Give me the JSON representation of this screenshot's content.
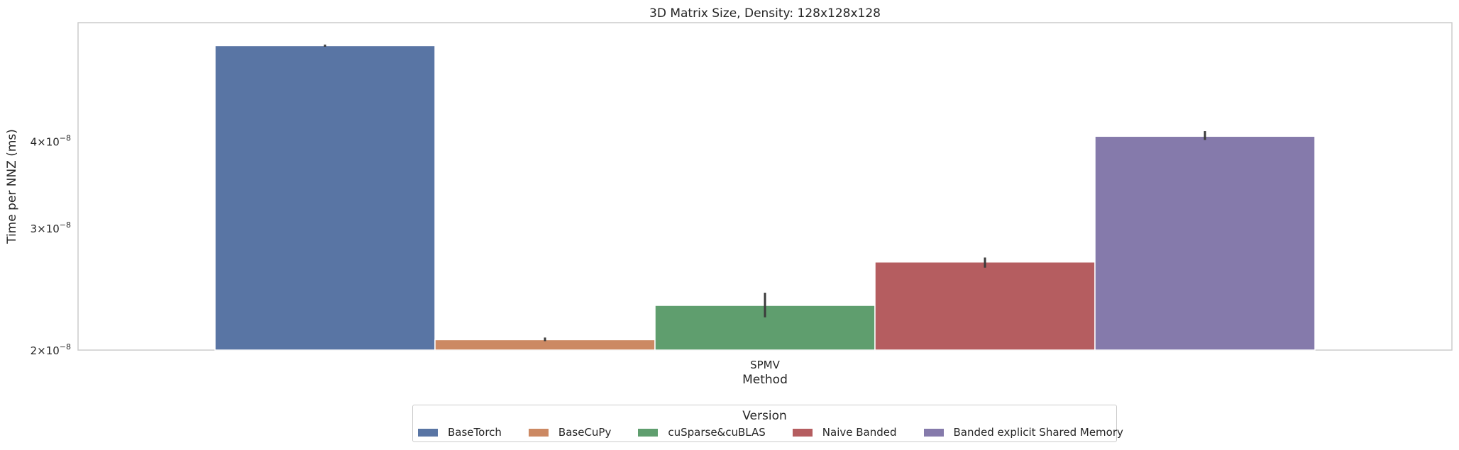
{
  "chart_data": {
    "type": "bar",
    "title": "3D Matrix Size, Density: 128x128x128",
    "xlabel": "Method",
    "ylabel": "Time per NNZ (ms)",
    "yscale": "log",
    "ylim": [
      2e-08,
      5.65e-08
    ],
    "yticks": [
      {
        "value": 2e-08,
        "mant": "2",
        "exp": "−8"
      },
      {
        "value": 3e-08,
        "mant": "3",
        "exp": "−8"
      },
      {
        "value": 4e-08,
        "mant": "4",
        "exp": "−8"
      }
    ],
    "categories": [
      "SPMV"
    ],
    "grid": false,
    "legend_title": "Version",
    "legend_position": "bottom-center",
    "series": [
      {
        "name": "BaseTorch",
        "color": "#5975a4",
        "values": [
          5.5e-08
        ],
        "err": [
          [
            5.48e-08,
            5.52e-08
          ]
        ]
      },
      {
        "name": "BaseCuPy",
        "color": "#cc8963",
        "values": [
          2.07e-08
        ],
        "err": [
          [
            2.06e-08,
            2.085e-08
          ]
        ]
      },
      {
        "name": "cuSparse&cuBLAS",
        "color": "#5f9e6e",
        "values": [
          2.32e-08
        ],
        "err": [
          [
            2.23e-08,
            2.42e-08
          ]
        ]
      },
      {
        "name": "Naive Banded",
        "color": "#b55d60",
        "values": [
          2.68e-08
        ],
        "err": [
          [
            2.63e-08,
            2.72e-08
          ]
        ]
      },
      {
        "name": "Banded explicit Shared Memory",
        "color": "#857aab",
        "values": [
          4.07e-08
        ],
        "err": [
          [
            4.02e-08,
            4.14e-08
          ]
        ]
      }
    ]
  }
}
